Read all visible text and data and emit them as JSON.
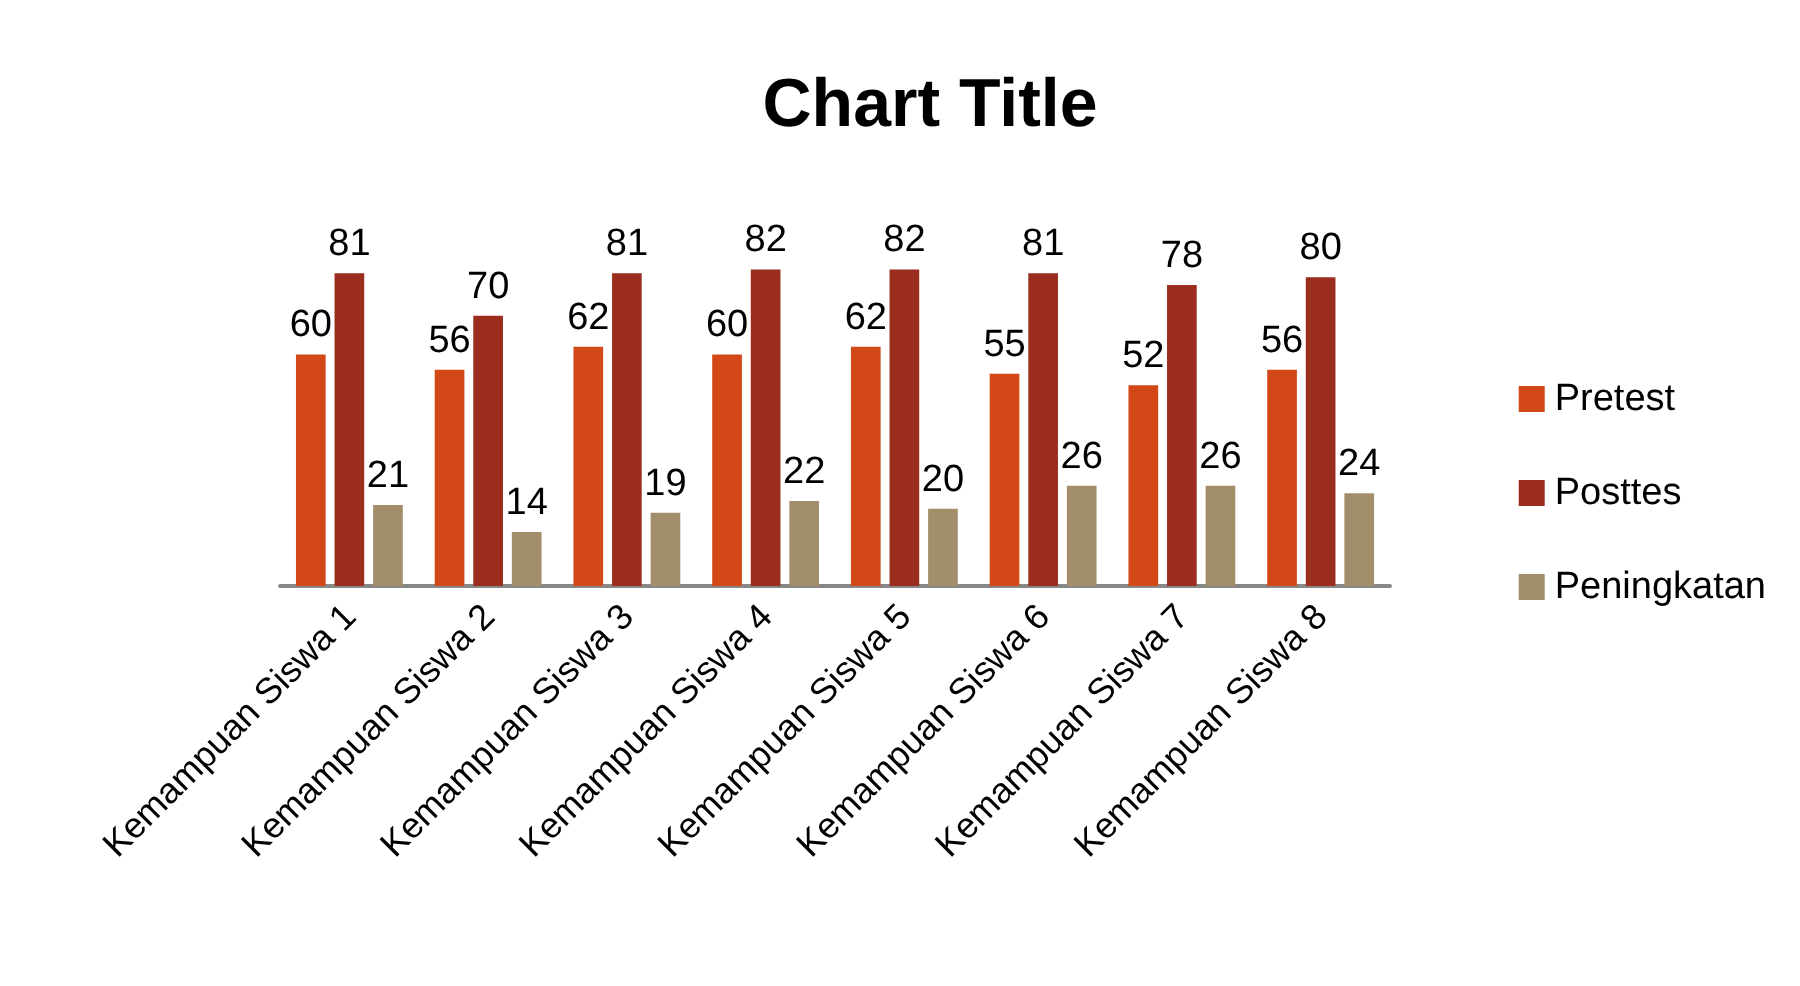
{
  "chart_data": {
    "type": "bar",
    "title": "Chart Title",
    "categories": [
      "Kemampuan Siswa 1",
      "Kemampuan Siswa 2",
      "Kemampuan Siswa 3",
      "Kemampuan Siswa 4",
      "Kemampuan Siswa 5",
      "Kemampuan Siswa 6",
      "Kemampuan Siswa 7",
      "Kemampuan Siswa 8"
    ],
    "series": [
      {
        "name": "Pretest",
        "color": "#d34817",
        "values": [
          60,
          56,
          62,
          60,
          62,
          55,
          52,
          56
        ]
      },
      {
        "name": "Posttes",
        "color": "#9b2d1f",
        "values": [
          81,
          70,
          81,
          82,
          82,
          81,
          78,
          80
        ]
      },
      {
        "name": "Peningkatan",
        "color": "#a28e6a",
        "values": [
          21,
          14,
          19,
          22,
          20,
          26,
          26,
          24
        ]
      }
    ],
    "data_labels": true,
    "legend": "right"
  }
}
